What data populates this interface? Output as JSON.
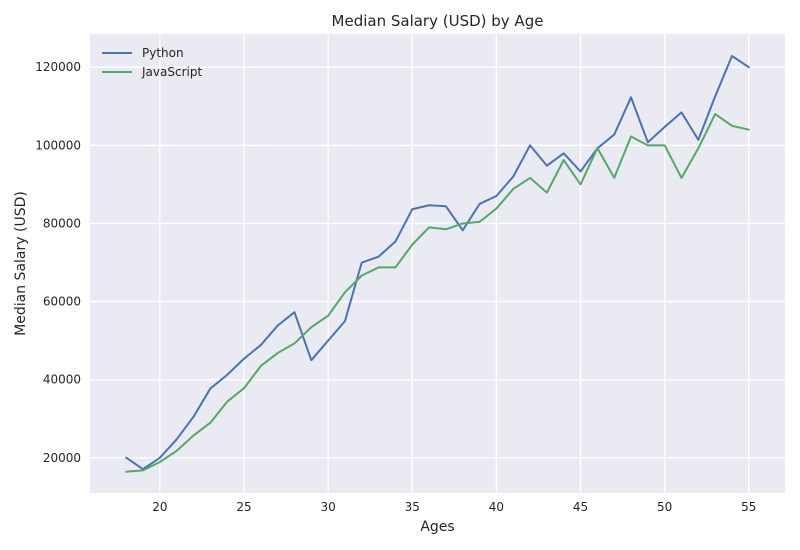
{
  "chart_data": {
    "type": "line",
    "title": "Median Salary (USD) by Age",
    "xlabel": "Ages",
    "ylabel": "Median Salary (USD)",
    "xlim": [
      15.85,
      57.15
    ],
    "ylim": [
      11000,
      128500
    ],
    "xticks": [
      20,
      25,
      30,
      35,
      40,
      45,
      50,
      55
    ],
    "yticks": [
      20000,
      40000,
      60000,
      80000,
      100000,
      120000
    ],
    "grid": true,
    "legend_position": "top-left",
    "x": [
      18,
      19,
      20,
      21,
      22,
      23,
      24,
      25,
      26,
      27,
      28,
      29,
      30,
      31,
      32,
      33,
      34,
      35,
      36,
      37,
      38,
      39,
      40,
      41,
      42,
      43,
      44,
      45,
      46,
      47,
      48,
      49,
      50,
      51,
      52,
      53,
      54,
      55
    ],
    "series": [
      {
        "name": "Python",
        "color": "#4c72b0",
        "values": [
          20046,
          17100,
          20000,
          24744,
          30500,
          37732,
          41247,
          45372,
          48876,
          53850,
          57287,
          45000,
          50000,
          55000,
          70000,
          71496,
          75370,
          83640,
          84666,
          84392,
          78254,
          85000,
          87038,
          91991,
          100000,
          94796,
          97962,
          93302,
          99240,
          102736,
          112285,
          100771,
          104708,
          108423,
          101407,
          112542,
          122870,
          120000
        ]
      },
      {
        "name": "JavaScript",
        "color": "#55a868",
        "values": [
          16446,
          16791,
          18942,
          21780,
          25704,
          29000,
          34372,
          37810,
          43515,
          46823,
          49293,
          53437,
          56373,
          62375,
          66674,
          68745,
          68746,
          74583,
          79000,
          78508,
          79996,
          80403,
          83820,
          88833,
          91660,
          87892,
          96243,
          90000,
          99313,
          91660,
          102264,
          100000,
          100000,
          91660,
          99240,
          108000,
          105000,
          104000
        ]
      }
    ]
  }
}
